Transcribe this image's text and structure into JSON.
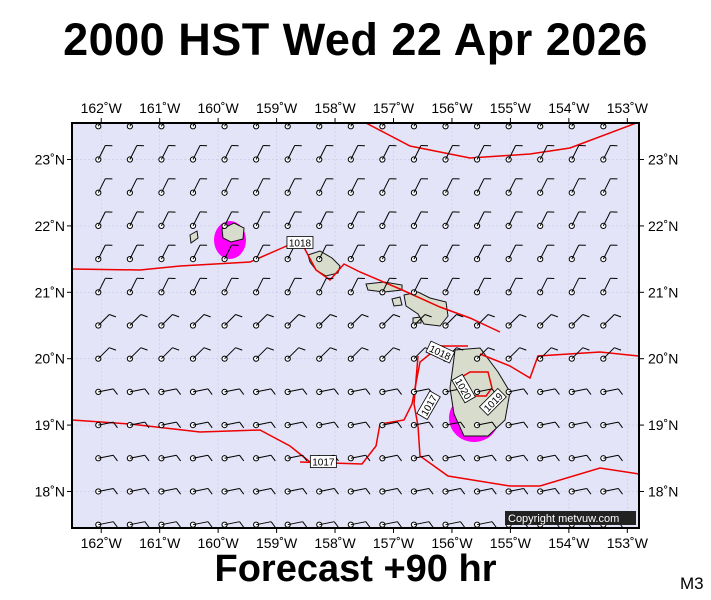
{
  "title": "2000 HST Wed 22 Apr 2026",
  "subtitle": "Forecast +90 hr",
  "model_code": "M3",
  "copyright": "Copyright metvuw.com",
  "colors": {
    "ocean": "#e4e4f8",
    "land": "#d8dccc",
    "isobar": "#ee0000",
    "rain_heavy": "#ff00ff",
    "rain_light": "#ffaa99"
  },
  "map": {
    "lon_range": [
      -162.5,
      -152.8
    ],
    "lat_range": [
      17.45,
      23.55
    ],
    "lon_ticks": [
      {
        "value": -162,
        "label": "162˚W"
      },
      {
        "value": -161,
        "label": "161˚W"
      },
      {
        "value": -160,
        "label": "160˚W"
      },
      {
        "value": -159,
        "label": "159˚W"
      },
      {
        "value": -158,
        "label": "158˚W"
      },
      {
        "value": -157,
        "label": "157˚W"
      },
      {
        "value": -156,
        "label": "156˚W"
      },
      {
        "value": -155,
        "label": "155˚W"
      },
      {
        "value": -154,
        "label": "154˚W"
      },
      {
        "value": -153,
        "label": "153˚W"
      }
    ],
    "lat_ticks": [
      {
        "value": 23,
        "label": "23˚N"
      },
      {
        "value": 22,
        "label": "22˚N"
      },
      {
        "value": 21,
        "label": "21˚N"
      },
      {
        "value": 20,
        "label": "20˚N"
      },
      {
        "value": 19,
        "label": "19˚N"
      },
      {
        "value": 18,
        "label": "18˚N"
      }
    ],
    "isobar_labels": [
      {
        "text": "1018",
        "lon": -158.6,
        "lat": 21.75,
        "angle": 0
      },
      {
        "text": "1018",
        "lon": -156.2,
        "lat": 20.1,
        "angle": 25
      },
      {
        "text": "1020",
        "lon": -155.8,
        "lat": 19.55,
        "angle": 60
      },
      {
        "text": "1019",
        "lon": -155.3,
        "lat": 19.35,
        "angle": -45
      },
      {
        "text": "1017",
        "lon": -156.4,
        "lat": 19.3,
        "angle": -60
      },
      {
        "text": "1017",
        "lon": -158.2,
        "lat": 18.45,
        "angle": 0
      }
    ]
  }
}
